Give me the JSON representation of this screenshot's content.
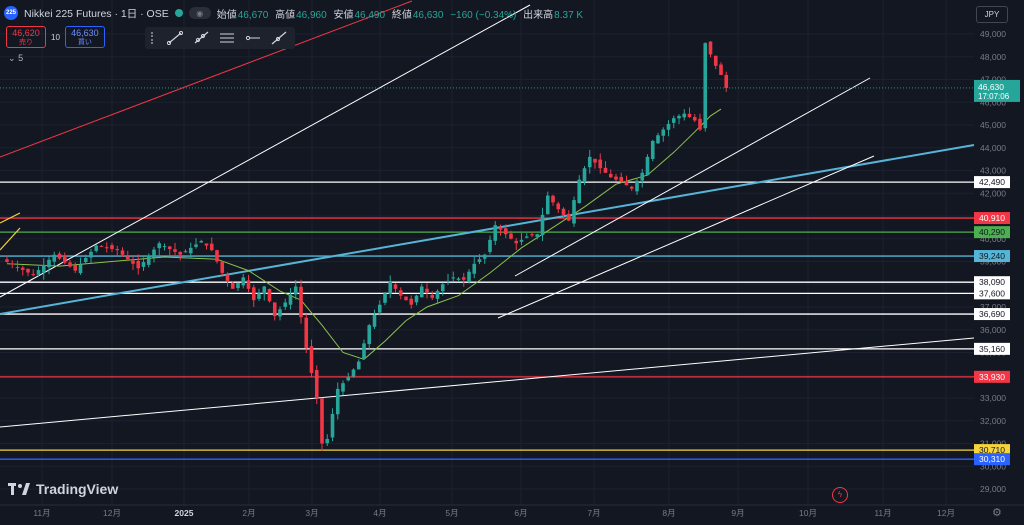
{
  "header": {
    "symbol_badge": "225",
    "title": "Nikkei 225 Futures · 1日 · OSE",
    "ohlc": [
      {
        "key": "始値",
        "value": "46,670"
      },
      {
        "key": "高値",
        "value": "46,960"
      },
      {
        "key": "安値",
        "value": "46,490"
      },
      {
        "key": "終値",
        "value": "46,630"
      },
      {
        "key": "",
        "value": "−160 (−0.34%)"
      },
      {
        "key": "出来高",
        "value": "8.37 K"
      }
    ],
    "currency": "JPY"
  },
  "trade": {
    "sell_price": "46,620",
    "sell_label": "売り",
    "spread": "10",
    "buy_price": "46,630",
    "buy_label": "買い",
    "layers": "5"
  },
  "drawing_tools": [
    "trend-line-icon",
    "ray-icon",
    "parallel-channel-icon",
    "horizontal-ray-icon",
    "extended-line-icon"
  ],
  "brand": "TradingView",
  "colors": {
    "up": "#26a69a",
    "down": "#f23645",
    "ma": "#8bc34a",
    "red_line": "#f23645",
    "blue_line": "#56b5d6",
    "white_line": "#ffffff",
    "yellow_line": "#f5d43b",
    "navy_line": "#2962ff",
    "green_level": "#4caf50"
  },
  "chart_data": {
    "type": "candlestick",
    "y_ticks": [
      "49,000",
      "48,000",
      "47,000",
      "46,000",
      "45,000",
      "44,000",
      "43,000",
      "42,000",
      "41,000",
      "40,000",
      "39,000",
      "38,000",
      "37,000",
      "36,000",
      "35,000",
      "34,000",
      "33,000",
      "32,000",
      "31,000",
      "30,000",
      "29,000"
    ],
    "ylim": [
      28800,
      49800
    ],
    "x_ticks": [
      "11月",
      "12月",
      "2025",
      "2月",
      "3月",
      "4月",
      "5月",
      "6月",
      "7月",
      "8月",
      "9月",
      "10月",
      "11月",
      "12月"
    ],
    "last_price": {
      "value": 46630,
      "label": "46,630",
      "countdown": "17:07:06"
    },
    "levels": [
      {
        "value": 42490,
        "label": "42,490",
        "color": "#ffffff"
      },
      {
        "value": 40910,
        "label": "40,910",
        "color": "#f23645"
      },
      {
        "value": 40290,
        "label": "40,290",
        "color": "#4caf50"
      },
      {
        "value": 39240,
        "label": "39,240",
        "color": "#56b5d6"
      },
      {
        "value": 38090,
        "label": "38,090",
        "color": "#ffffff"
      },
      {
        "value": 37600,
        "label": "37,600",
        "color": "#ffffff"
      },
      {
        "value": 36690,
        "label": "36,690",
        "color": "#ffffff"
      },
      {
        "value": 35160,
        "label": "35,160",
        "color": "#ffffff"
      },
      {
        "value": 33930,
        "label": "33,930",
        "color": "#f23645"
      },
      {
        "value": 30710,
        "label": "30,710",
        "color": "#f5d43b"
      },
      {
        "value": 30310,
        "label": "30,310",
        "color": "#2962ff"
      }
    ],
    "path": [
      [
        0,
        39100
      ],
      [
        6,
        38400
      ],
      [
        10,
        39300
      ],
      [
        14,
        38600
      ],
      [
        18,
        39700
      ],
      [
        22,
        39500
      ],
      [
        26,
        38700
      ],
      [
        30,
        39800
      ],
      [
        34,
        39300
      ],
      [
        38,
        39900
      ],
      [
        40,
        39500
      ],
      [
        42,
        38500
      ],
      [
        44,
        37800
      ],
      [
        46,
        38300
      ],
      [
        48,
        37300
      ],
      [
        50,
        37900
      ],
      [
        52,
        36600
      ],
      [
        54,
        37200
      ],
      [
        56,
        37900
      ],
      [
        58,
        35200
      ],
      [
        59.5,
        33000
      ],
      [
        60.3,
        31000
      ],
      [
        61.5,
        31200
      ],
      [
        63,
        33400
      ],
      [
        65,
        33900
      ],
      [
        67,
        34600
      ],
      [
        69,
        36200
      ],
      [
        71,
        37100
      ],
      [
        73,
        38100
      ],
      [
        75,
        37500
      ],
      [
        77,
        37100
      ],
      [
        79,
        37900
      ],
      [
        81,
        37400
      ],
      [
        83,
        38000
      ],
      [
        85,
        38300
      ],
      [
        87,
        38200
      ],
      [
        89,
        38900
      ],
      [
        91,
        39300
      ],
      [
        93,
        40600
      ],
      [
        95,
        40200
      ],
      [
        97,
        39800
      ],
      [
        99,
        40100
      ],
      [
        101,
        40200
      ],
      [
        103,
        41900
      ],
      [
        105,
        41300
      ],
      [
        107,
        40800
      ],
      [
        109,
        42600
      ],
      [
        111,
        43600
      ],
      [
        113,
        43100
      ],
      [
        115,
        42700
      ],
      [
        117,
        42500
      ],
      [
        119,
        42200
      ],
      [
        121,
        42900
      ],
      [
        123,
        44300
      ],
      [
        125,
        44800
      ],
      [
        127,
        45300
      ],
      [
        129,
        45500
      ],
      [
        131,
        45200
      ],
      [
        132,
        44800
      ],
      [
        133,
        48600
      ],
      [
        134.5,
        47600
      ],
      [
        135.5,
        47200
      ],
      [
        136,
        46630
      ]
    ],
    "ma_path": [
      [
        0,
        38900
      ],
      [
        10,
        38800
      ],
      [
        20,
        39000
      ],
      [
        30,
        39200
      ],
      [
        40,
        39100
      ],
      [
        46,
        38600
      ],
      [
        52,
        37700
      ],
      [
        56,
        37300
      ],
      [
        60,
        36200
      ],
      [
        64,
        35000
      ],
      [
        68,
        34700
      ],
      [
        72,
        35500
      ],
      [
        76,
        36400
      ],
      [
        80,
        37000
      ],
      [
        86,
        37500
      ],
      [
        92,
        38500
      ],
      [
        98,
        39600
      ],
      [
        104,
        40500
      ],
      [
        110,
        41400
      ],
      [
        116,
        42400
      ],
      [
        122,
        42800
      ],
      [
        127,
        43800
      ],
      [
        131,
        44700
      ],
      [
        134,
        45400
      ],
      [
        136,
        45700
      ]
    ],
    "trendlines": [
      {
        "color": "#f23645",
        "width": 1,
        "p1": [
          0,
          157
        ],
        "p2": [
          412,
          1
        ]
      },
      {
        "color": "#ffffff",
        "width": 1,
        "p1": [
          0,
          297
        ],
        "p2": [
          530,
          5
        ]
      },
      {
        "color": "#56b5d6",
        "width": 2,
        "p1": [
          0,
          314
        ],
        "p2": [
          974,
          145
        ]
      },
      {
        "color": "#ffffff",
        "width": 1,
        "p1": [
          0,
          427
        ],
        "p2": [
          974,
          338
        ]
      },
      {
        "color": "#ffffff",
        "width": 1,
        "p1": [
          498,
          318
        ],
        "p2": [
          874,
          156
        ]
      },
      {
        "color": "#ffffff",
        "width": 1,
        "p1": [
          515,
          276
        ],
        "p2": [
          870,
          78
        ]
      },
      {
        "color": "#f5d43b",
        "width": 1.2,
        "p1": [
          0,
          223
        ],
        "p2": [
          20,
          213
        ]
      },
      {
        "color": "#f5d43b",
        "width": 1.2,
        "p1": [
          0,
          250
        ],
        "p2": [
          20,
          228
        ]
      }
    ]
  }
}
